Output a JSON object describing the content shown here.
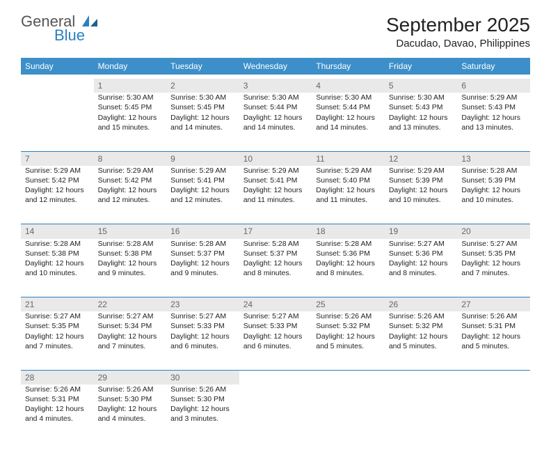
{
  "brand": {
    "name1": "General",
    "name2": "Blue"
  },
  "title": "September 2025",
  "location": "Dacudao, Davao, Philippines",
  "colors": {
    "header_bg": "#3d8fc9",
    "header_fg": "#ffffff",
    "daynum_bg": "#e9e9e9",
    "daynum_fg": "#666666",
    "border": "#2a7fbf",
    "text": "#222222",
    "logo_gray": "#555555",
    "logo_blue": "#2a7fbf"
  },
  "typography": {
    "title_fontsize": 28,
    "location_fontsize": 15,
    "th_fontsize": 12,
    "cell_fontsize": 10.5
  },
  "dayHeaders": [
    "Sunday",
    "Monday",
    "Tuesday",
    "Wednesday",
    "Thursday",
    "Friday",
    "Saturday"
  ],
  "weeks": [
    {
      "nums": [
        "",
        "1",
        "2",
        "3",
        "4",
        "5",
        "6"
      ],
      "cells": [
        {
          "sunrise": "",
          "sunset": "",
          "daylight": ""
        },
        {
          "sunrise": "Sunrise: 5:30 AM",
          "sunset": "Sunset: 5:45 PM",
          "daylight": "Daylight: 12 hours and 15 minutes."
        },
        {
          "sunrise": "Sunrise: 5:30 AM",
          "sunset": "Sunset: 5:45 PM",
          "daylight": "Daylight: 12 hours and 14 minutes."
        },
        {
          "sunrise": "Sunrise: 5:30 AM",
          "sunset": "Sunset: 5:44 PM",
          "daylight": "Daylight: 12 hours and 14 minutes."
        },
        {
          "sunrise": "Sunrise: 5:30 AM",
          "sunset": "Sunset: 5:44 PM",
          "daylight": "Daylight: 12 hours and 14 minutes."
        },
        {
          "sunrise": "Sunrise: 5:30 AM",
          "sunset": "Sunset: 5:43 PM",
          "daylight": "Daylight: 12 hours and 13 minutes."
        },
        {
          "sunrise": "Sunrise: 5:29 AM",
          "sunset": "Sunset: 5:43 PM",
          "daylight": "Daylight: 12 hours and 13 minutes."
        }
      ]
    },
    {
      "nums": [
        "7",
        "8",
        "9",
        "10",
        "11",
        "12",
        "13"
      ],
      "cells": [
        {
          "sunrise": "Sunrise: 5:29 AM",
          "sunset": "Sunset: 5:42 PM",
          "daylight": "Daylight: 12 hours and 12 minutes."
        },
        {
          "sunrise": "Sunrise: 5:29 AM",
          "sunset": "Sunset: 5:42 PM",
          "daylight": "Daylight: 12 hours and 12 minutes."
        },
        {
          "sunrise": "Sunrise: 5:29 AM",
          "sunset": "Sunset: 5:41 PM",
          "daylight": "Daylight: 12 hours and 12 minutes."
        },
        {
          "sunrise": "Sunrise: 5:29 AM",
          "sunset": "Sunset: 5:41 PM",
          "daylight": "Daylight: 12 hours and 11 minutes."
        },
        {
          "sunrise": "Sunrise: 5:29 AM",
          "sunset": "Sunset: 5:40 PM",
          "daylight": "Daylight: 12 hours and 11 minutes."
        },
        {
          "sunrise": "Sunrise: 5:29 AM",
          "sunset": "Sunset: 5:39 PM",
          "daylight": "Daylight: 12 hours and 10 minutes."
        },
        {
          "sunrise": "Sunrise: 5:28 AM",
          "sunset": "Sunset: 5:39 PM",
          "daylight": "Daylight: 12 hours and 10 minutes."
        }
      ]
    },
    {
      "nums": [
        "14",
        "15",
        "16",
        "17",
        "18",
        "19",
        "20"
      ],
      "cells": [
        {
          "sunrise": "Sunrise: 5:28 AM",
          "sunset": "Sunset: 5:38 PM",
          "daylight": "Daylight: 12 hours and 10 minutes."
        },
        {
          "sunrise": "Sunrise: 5:28 AM",
          "sunset": "Sunset: 5:38 PM",
          "daylight": "Daylight: 12 hours and 9 minutes."
        },
        {
          "sunrise": "Sunrise: 5:28 AM",
          "sunset": "Sunset: 5:37 PM",
          "daylight": "Daylight: 12 hours and 9 minutes."
        },
        {
          "sunrise": "Sunrise: 5:28 AM",
          "sunset": "Sunset: 5:37 PM",
          "daylight": "Daylight: 12 hours and 8 minutes."
        },
        {
          "sunrise": "Sunrise: 5:28 AM",
          "sunset": "Sunset: 5:36 PM",
          "daylight": "Daylight: 12 hours and 8 minutes."
        },
        {
          "sunrise": "Sunrise: 5:27 AM",
          "sunset": "Sunset: 5:36 PM",
          "daylight": "Daylight: 12 hours and 8 minutes."
        },
        {
          "sunrise": "Sunrise: 5:27 AM",
          "sunset": "Sunset: 5:35 PM",
          "daylight": "Daylight: 12 hours and 7 minutes."
        }
      ]
    },
    {
      "nums": [
        "21",
        "22",
        "23",
        "24",
        "25",
        "26",
        "27"
      ],
      "cells": [
        {
          "sunrise": "Sunrise: 5:27 AM",
          "sunset": "Sunset: 5:35 PM",
          "daylight": "Daylight: 12 hours and 7 minutes."
        },
        {
          "sunrise": "Sunrise: 5:27 AM",
          "sunset": "Sunset: 5:34 PM",
          "daylight": "Daylight: 12 hours and 7 minutes."
        },
        {
          "sunrise": "Sunrise: 5:27 AM",
          "sunset": "Sunset: 5:33 PM",
          "daylight": "Daylight: 12 hours and 6 minutes."
        },
        {
          "sunrise": "Sunrise: 5:27 AM",
          "sunset": "Sunset: 5:33 PM",
          "daylight": "Daylight: 12 hours and 6 minutes."
        },
        {
          "sunrise": "Sunrise: 5:26 AM",
          "sunset": "Sunset: 5:32 PM",
          "daylight": "Daylight: 12 hours and 5 minutes."
        },
        {
          "sunrise": "Sunrise: 5:26 AM",
          "sunset": "Sunset: 5:32 PM",
          "daylight": "Daylight: 12 hours and 5 minutes."
        },
        {
          "sunrise": "Sunrise: 5:26 AM",
          "sunset": "Sunset: 5:31 PM",
          "daylight": "Daylight: 12 hours and 5 minutes."
        }
      ]
    },
    {
      "nums": [
        "28",
        "29",
        "30",
        "",
        "",
        "",
        ""
      ],
      "cells": [
        {
          "sunrise": "Sunrise: 5:26 AM",
          "sunset": "Sunset: 5:31 PM",
          "daylight": "Daylight: 12 hours and 4 minutes."
        },
        {
          "sunrise": "Sunrise: 5:26 AM",
          "sunset": "Sunset: 5:30 PM",
          "daylight": "Daylight: 12 hours and 4 minutes."
        },
        {
          "sunrise": "Sunrise: 5:26 AM",
          "sunset": "Sunset: 5:30 PM",
          "daylight": "Daylight: 12 hours and 3 minutes."
        },
        {
          "sunrise": "",
          "sunset": "",
          "daylight": ""
        },
        {
          "sunrise": "",
          "sunset": "",
          "daylight": ""
        },
        {
          "sunrise": "",
          "sunset": "",
          "daylight": ""
        },
        {
          "sunrise": "",
          "sunset": "",
          "daylight": ""
        }
      ]
    }
  ]
}
